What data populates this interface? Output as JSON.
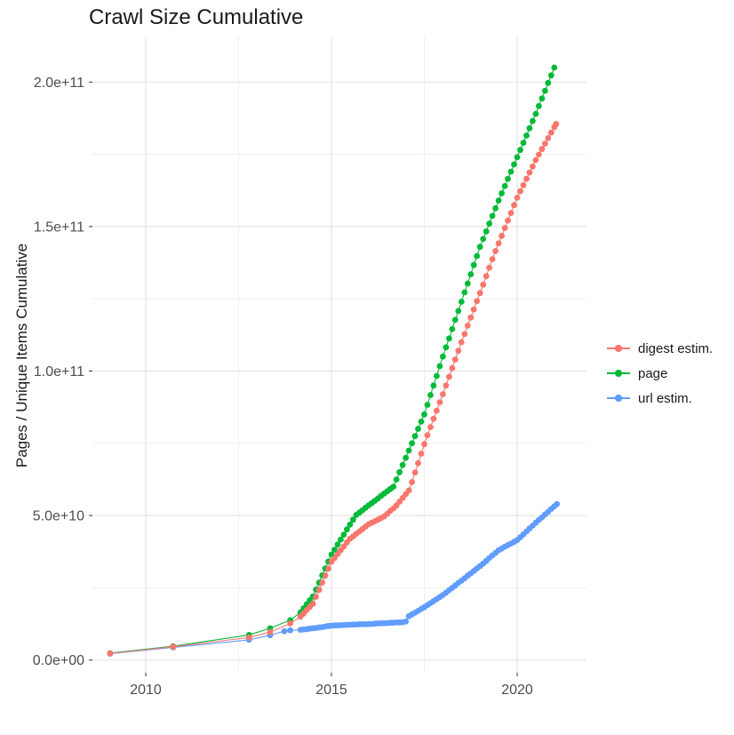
{
  "title": "Crawl Size Cumulative",
  "y_axis": {
    "label": "Pages / Unique Items Cumulative",
    "tick_labels": [
      "0.0e+00",
      "5.0e+10",
      "1.0e+11",
      "1.5e+11",
      "2.0e+11"
    ],
    "tick_values_billion": [
      0,
      50,
      100,
      150,
      200
    ],
    "minor_grid_values_billion": [
      25,
      75,
      125,
      175
    ]
  },
  "x_axis": {
    "tick_labels": [
      "2010",
      "2015",
      "2020"
    ],
    "tick_values": [
      2010,
      2015,
      2020
    ],
    "minor_grid_values": [
      2012.5,
      2017.5
    ]
  },
  "legend": {
    "position": "right",
    "entries": [
      {
        "label": "digest estim.",
        "color": "#F8766D"
      },
      {
        "label": "page",
        "color": "#00BA38"
      },
      {
        "label": "url estim.",
        "color": "#619CFF"
      }
    ]
  },
  "colors": {
    "background": "#FFFFFF",
    "grid_major": "#E4E4E4",
    "grid_minor": "#EFEFEF",
    "tick_text": "#4D4D4D",
    "tick_mark": "#333333",
    "text": "#1A1A1A",
    "series_digest": "#F8766D",
    "series_page": "#00BA38",
    "series_url": "#619CFF"
  },
  "chart_data": {
    "type": "scatter",
    "title": "Crawl Size Cumulative",
    "xlabel": "",
    "ylabel": "Pages / Unique Items Cumulative",
    "x_range": [
      2008.6,
      2021.9
    ],
    "ylim": [
      0,
      215000000000.0
    ],
    "grid": "on",
    "legend_position": "right",
    "values_unit": "cumulative count; point values given in billions (value x 1e9)",
    "series": [
      {
        "name": "digest estim.",
        "color": "#F8766D",
        "points_year_billion": [
          [
            2009.04,
            2.3
          ],
          [
            2010.74,
            4.6
          ],
          [
            2012.78,
            7.8
          ],
          [
            2013.35,
            9.7
          ],
          [
            2013.89,
            12.7
          ],
          [
            2014.167,
            15.0
          ],
          [
            2014.25,
            16.1
          ],
          [
            2014.333,
            17.3
          ],
          [
            2014.417,
            18.4
          ],
          [
            2014.5,
            19.5
          ],
          [
            2014.583,
            21.9
          ],
          [
            2014.667,
            24.3
          ],
          [
            2014.75,
            26.8
          ],
          [
            2014.833,
            29.2
          ],
          [
            2014.917,
            31.6
          ],
          [
            2015.0,
            34.0
          ],
          [
            2015.083,
            35.3
          ],
          [
            2015.167,
            36.7
          ],
          [
            2015.25,
            38.0
          ],
          [
            2015.333,
            39.3
          ],
          [
            2015.417,
            40.7
          ],
          [
            2015.5,
            42.0
          ],
          [
            2015.583,
            42.8
          ],
          [
            2015.667,
            43.7
          ],
          [
            2015.75,
            44.5
          ],
          [
            2015.833,
            45.3
          ],
          [
            2015.917,
            46.2
          ],
          [
            2016.0,
            47.0
          ],
          [
            2016.083,
            47.5
          ],
          [
            2016.167,
            48.0
          ],
          [
            2016.25,
            48.6
          ],
          [
            2016.333,
            49.1
          ],
          [
            2016.417,
            49.7
          ],
          [
            2016.5,
            50.6
          ],
          [
            2016.583,
            51.6
          ],
          [
            2016.667,
            52.5
          ],
          [
            2016.75,
            53.5
          ],
          [
            2016.833,
            54.8
          ],
          [
            2016.917,
            56.1
          ],
          [
            2017.0,
            57.4
          ],
          [
            2017.083,
            58.7
          ],
          [
            2017.167,
            61.6
          ],
          [
            2017.25,
            64.9
          ],
          [
            2017.333,
            68.1
          ],
          [
            2017.417,
            71.4
          ],
          [
            2017.5,
            74.7
          ],
          [
            2017.583,
            77.8
          ],
          [
            2017.667,
            80.6
          ],
          [
            2017.75,
            83.5
          ],
          [
            2017.833,
            86.3
          ],
          [
            2017.917,
            89.2
          ],
          [
            2018.0,
            92.0
          ],
          [
            2018.083,
            95.0
          ],
          [
            2018.167,
            98.0
          ],
          [
            2018.25,
            101.0
          ],
          [
            2018.333,
            104.0
          ],
          [
            2018.417,
            107.0
          ],
          [
            2018.5,
            110.0
          ],
          [
            2018.583,
            112.8
          ],
          [
            2018.667,
            115.7
          ],
          [
            2018.75,
            118.5
          ],
          [
            2018.833,
            121.3
          ],
          [
            2018.917,
            124.2
          ],
          [
            2019.0,
            127.0
          ],
          [
            2019.083,
            129.9
          ],
          [
            2019.167,
            132.8
          ],
          [
            2019.25,
            135.8
          ],
          [
            2019.333,
            138.7
          ],
          [
            2019.417,
            141.5
          ],
          [
            2019.5,
            144.2
          ],
          [
            2019.583,
            146.8
          ],
          [
            2019.667,
            149.5
          ],
          [
            2019.75,
            152.1
          ],
          [
            2019.833,
            154.7
          ],
          [
            2019.917,
            157.4
          ],
          [
            2020.0,
            160.0
          ],
          [
            2020.083,
            162.2
          ],
          [
            2020.167,
            164.3
          ],
          [
            2020.25,
            166.5
          ],
          [
            2020.333,
            168.7
          ],
          [
            2020.417,
            170.8
          ],
          [
            2020.5,
            173.0
          ],
          [
            2020.583,
            174.9
          ],
          [
            2020.667,
            176.8
          ],
          [
            2020.75,
            178.7
          ],
          [
            2020.833,
            180.6
          ],
          [
            2020.917,
            182.5
          ],
          [
            2021.0,
            184.4
          ],
          [
            2021.05,
            185.5
          ]
        ]
      },
      {
        "name": "page",
        "color": "#00BA38",
        "points_year_billion": [
          [
            2009.04,
            2.4
          ],
          [
            2010.74,
            4.8
          ],
          [
            2012.78,
            8.7
          ],
          [
            2013.35,
            11.0
          ],
          [
            2013.89,
            13.8
          ],
          [
            2014.167,
            16.5
          ],
          [
            2014.25,
            17.9
          ],
          [
            2014.333,
            19.3
          ],
          [
            2014.417,
            20.7
          ],
          [
            2014.5,
            22.0
          ],
          [
            2014.583,
            24.4
          ],
          [
            2014.667,
            26.8
          ],
          [
            2014.75,
            29.3
          ],
          [
            2014.833,
            31.7
          ],
          [
            2014.917,
            34.1
          ],
          [
            2015.0,
            36.5
          ],
          [
            2015.083,
            38.2
          ],
          [
            2015.167,
            40.0
          ],
          [
            2015.25,
            41.7
          ],
          [
            2015.333,
            43.4
          ],
          [
            2015.417,
            45.2
          ],
          [
            2015.5,
            46.9
          ],
          [
            2015.583,
            48.6
          ],
          [
            2015.667,
            50.2
          ],
          [
            2015.75,
            51.0
          ],
          [
            2015.833,
            51.8
          ],
          [
            2015.917,
            52.7
          ],
          [
            2016.0,
            53.5
          ],
          [
            2016.083,
            54.3
          ],
          [
            2016.167,
            55.1
          ],
          [
            2016.25,
            55.9
          ],
          [
            2016.333,
            56.8
          ],
          [
            2016.417,
            57.6
          ],
          [
            2016.5,
            58.4
          ],
          [
            2016.583,
            59.2
          ],
          [
            2016.667,
            60.0
          ],
          [
            2016.75,
            62.5
          ],
          [
            2016.833,
            65.0
          ],
          [
            2016.917,
            67.5
          ],
          [
            2017.0,
            70.0
          ],
          [
            2017.083,
            72.5
          ],
          [
            2017.167,
            75.0
          ],
          [
            2017.25,
            77.5
          ],
          [
            2017.333,
            80.0
          ],
          [
            2017.417,
            82.5
          ],
          [
            2017.5,
            85.0
          ],
          [
            2017.583,
            88.3
          ],
          [
            2017.667,
            91.7
          ],
          [
            2017.75,
            95.0
          ],
          [
            2017.833,
            98.3
          ],
          [
            2017.917,
            101.7
          ],
          [
            2018.0,
            105.0
          ],
          [
            2018.083,
            108.2
          ],
          [
            2018.167,
            111.3
          ],
          [
            2018.25,
            114.5
          ],
          [
            2018.333,
            117.7
          ],
          [
            2018.417,
            120.8
          ],
          [
            2018.5,
            124.0
          ],
          [
            2018.583,
            127.2
          ],
          [
            2018.667,
            130.3
          ],
          [
            2018.75,
            133.5
          ],
          [
            2018.833,
            136.7
          ],
          [
            2018.917,
            139.8
          ],
          [
            2019.0,
            143.0
          ],
          [
            2019.083,
            145.7
          ],
          [
            2019.167,
            148.3
          ],
          [
            2019.25,
            151.0
          ],
          [
            2019.333,
            153.7
          ],
          [
            2019.417,
            156.3
          ],
          [
            2019.5,
            159.0
          ],
          [
            2019.583,
            161.5
          ],
          [
            2019.667,
            164.0
          ],
          [
            2019.75,
            166.5
          ],
          [
            2019.833,
            169.0
          ],
          [
            2019.917,
            171.5
          ],
          [
            2020.0,
            174.0
          ],
          [
            2020.083,
            176.5
          ],
          [
            2020.167,
            179.0
          ],
          [
            2020.25,
            181.5
          ],
          [
            2020.333,
            184.0
          ],
          [
            2020.417,
            186.5
          ],
          [
            2020.5,
            189.0
          ],
          [
            2020.583,
            191.7
          ],
          [
            2020.667,
            194.3
          ],
          [
            2020.75,
            197.0
          ],
          [
            2020.833,
            199.7
          ],
          [
            2020.917,
            202.3
          ],
          [
            2021.0,
            205.0
          ]
        ]
      },
      {
        "name": "url estim.",
        "color": "#619CFF",
        "points_year_billion": [
          [
            2009.04,
            2.2
          ],
          [
            2010.74,
            4.4
          ],
          [
            2012.78,
            7.0
          ],
          [
            2013.35,
            8.6
          ],
          [
            2013.73,
            10.0
          ],
          [
            2013.89,
            10.3
          ],
          [
            2014.167,
            10.5
          ],
          [
            2014.25,
            10.6
          ],
          [
            2014.333,
            10.7
          ],
          [
            2014.417,
            10.9
          ],
          [
            2014.5,
            11.0
          ],
          [
            2014.583,
            11.1
          ],
          [
            2014.667,
            11.3
          ],
          [
            2014.75,
            11.4
          ],
          [
            2014.833,
            11.6
          ],
          [
            2014.917,
            11.8
          ],
          [
            2015.0,
            11.9
          ],
          [
            2015.083,
            12.0
          ],
          [
            2015.167,
            12.0
          ],
          [
            2015.25,
            12.1
          ],
          [
            2015.333,
            12.1
          ],
          [
            2015.417,
            12.2
          ],
          [
            2015.5,
            12.2
          ],
          [
            2015.583,
            12.3
          ],
          [
            2015.667,
            12.3
          ],
          [
            2015.75,
            12.4
          ],
          [
            2015.833,
            12.4
          ],
          [
            2015.917,
            12.4
          ],
          [
            2016.0,
            12.5
          ],
          [
            2016.083,
            12.5
          ],
          [
            2016.167,
            12.6
          ],
          [
            2016.25,
            12.7
          ],
          [
            2016.333,
            12.7
          ],
          [
            2016.417,
            12.8
          ],
          [
            2016.5,
            12.8
          ],
          [
            2016.583,
            12.9
          ],
          [
            2016.667,
            12.9
          ],
          [
            2016.75,
            13.0
          ],
          [
            2016.833,
            13.0
          ],
          [
            2016.917,
            13.1
          ],
          [
            2017.0,
            13.3
          ],
          [
            2017.083,
            15.2
          ],
          [
            2017.167,
            15.8
          ],
          [
            2017.25,
            16.4
          ],
          [
            2017.333,
            17.0
          ],
          [
            2017.417,
            17.7
          ],
          [
            2017.5,
            18.3
          ],
          [
            2017.583,
            19.0
          ],
          [
            2017.667,
            19.7
          ],
          [
            2017.75,
            20.4
          ],
          [
            2017.833,
            21.1
          ],
          [
            2017.917,
            21.8
          ],
          [
            2018.0,
            22.5
          ],
          [
            2018.083,
            23.3
          ],
          [
            2018.167,
            24.2
          ],
          [
            2018.25,
            25.0
          ],
          [
            2018.333,
            25.8
          ],
          [
            2018.417,
            26.7
          ],
          [
            2018.5,
            27.5
          ],
          [
            2018.583,
            28.3
          ],
          [
            2018.667,
            29.2
          ],
          [
            2018.75,
            30.0
          ],
          [
            2018.833,
            30.8
          ],
          [
            2018.917,
            31.7
          ],
          [
            2019.0,
            32.5
          ],
          [
            2019.083,
            33.4
          ],
          [
            2019.167,
            34.3
          ],
          [
            2019.25,
            35.3
          ],
          [
            2019.333,
            36.2
          ],
          [
            2019.417,
            37.1
          ],
          [
            2019.5,
            38.0
          ],
          [
            2019.583,
            38.6
          ],
          [
            2019.667,
            39.2
          ],
          [
            2019.75,
            39.8
          ],
          [
            2019.833,
            40.3
          ],
          [
            2019.917,
            40.9
          ],
          [
            2020.0,
            41.5
          ],
          [
            2020.083,
            42.5
          ],
          [
            2020.167,
            43.5
          ],
          [
            2020.25,
            44.5
          ],
          [
            2020.333,
            45.5
          ],
          [
            2020.417,
            46.5
          ],
          [
            2020.5,
            47.5
          ],
          [
            2020.583,
            48.5
          ],
          [
            2020.667,
            49.4
          ],
          [
            2020.75,
            50.4
          ],
          [
            2020.833,
            51.3
          ],
          [
            2020.917,
            52.3
          ],
          [
            2021.0,
            53.2
          ],
          [
            2021.07,
            54.0
          ]
        ]
      }
    ]
  }
}
